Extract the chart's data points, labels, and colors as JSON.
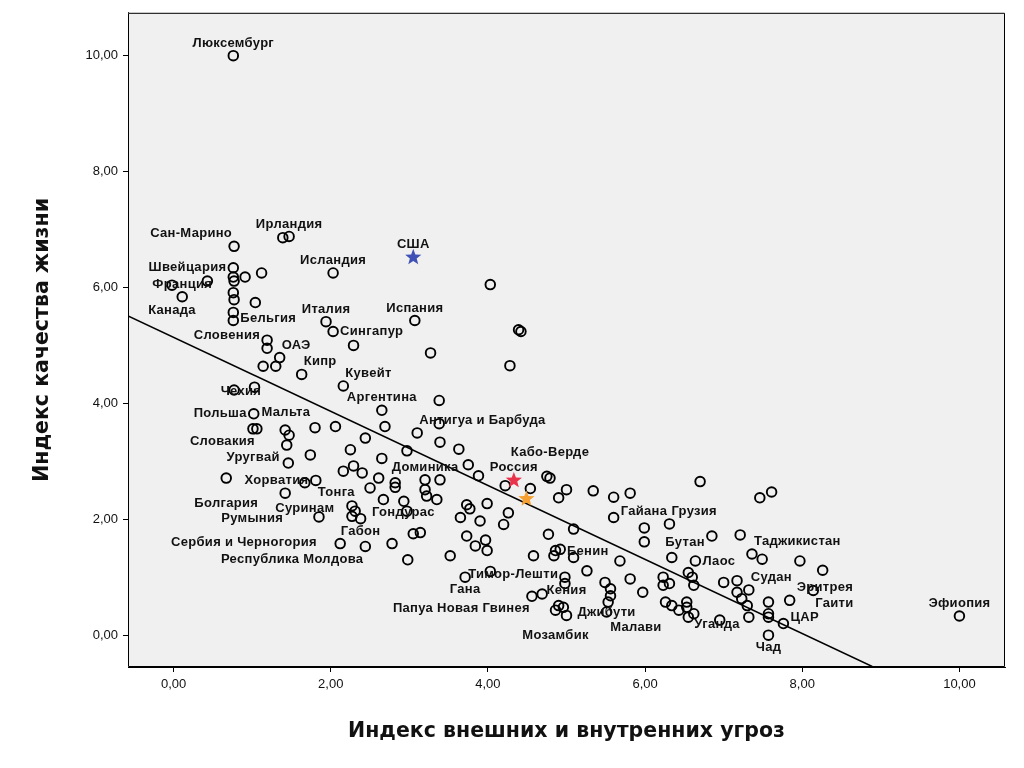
{
  "chart_data": {
    "type": "scatter",
    "xlabel": "Индекс внешних и внутренних угроз",
    "ylabel": "Индекс качества жизни",
    "xlim": [
      -0.58,
      10.58
    ],
    "ylim": [
      -0.55,
      10.74
    ],
    "xticks": [
      {
        "value": 0,
        "label": "0,00"
      },
      {
        "value": 2,
        "label": "2,00"
      },
      {
        "value": 4,
        "label": "4,00"
      },
      {
        "value": 6,
        "label": "6,00"
      },
      {
        "value": 8,
        "label": "8,00"
      },
      {
        "value": 10,
        "label": "10,00"
      }
    ],
    "yticks": [
      {
        "value": 0,
        "label": "0,00"
      },
      {
        "value": 2,
        "label": "2,00"
      },
      {
        "value": 4,
        "label": "4,00"
      },
      {
        "value": 6,
        "label": "6,00"
      },
      {
        "value": 8,
        "label": "8,00"
      },
      {
        "value": 10,
        "label": "10,00"
      }
    ],
    "series": [
      {
        "color": "#000000",
        "marker": "circle",
        "x": [
          0.76,
          1.39,
          1.47,
          0.77,
          4.03,
          0.76,
          0.76,
          0.77,
          0.91,
          1.12,
          2.03,
          0.43,
          -0.02,
          0.11,
          0.76,
          0.77,
          1.04,
          0.76,
          0.76,
          1.94,
          2.03,
          3.07,
          2.29,
          1.19,
          1.19,
          1.35,
          1.14,
          1.3,
          1.63,
          0.77,
          1.03,
          2.16,
          4.39,
          4.42,
          3.27,
          4.28,
          3.38,
          3.38,
          3.39,
          3.63,
          3.75,
          3.1,
          2.65,
          2.06,
          2.69,
          2.44,
          2.97,
          2.65,
          2.25,
          2.16,
          2.29,
          2.4,
          2.61,
          2.82,
          2.82,
          3.2,
          3.39,
          3.88,
          2.5,
          2.67,
          3.2,
          3.22,
          3.35,
          2.93,
          2.97,
          2.27,
          2.31,
          2.27,
          2.38,
          3.73,
          3.77,
          3.99,
          3.65,
          3.9,
          4.2,
          4.26,
          4.54,
          4.22,
          4.75,
          4.79,
          4.9,
          4.77,
          3.05,
          3.14,
          3.73,
          2.12,
          2.44,
          2.78,
          3.84,
          3.99,
          3.52,
          2.98,
          4.58,
          1.01,
          1.06,
          1.42,
          1.47,
          1.8,
          1.44,
          1.46,
          1.74,
          0.67,
          1.67,
          1.81,
          1.42,
          1.85,
          1.02,
          5.0,
          5.34,
          5.6,
          5.81,
          6.7,
          5.09,
          5.6,
          5.99,
          5.99,
          6.31,
          3.97,
          4.03,
          3.71,
          4.86,
          4.92,
          4.84,
          5.09,
          5.26,
          5.68,
          4.98,
          4.98,
          5.49,
          5.56,
          5.56,
          5.81,
          5.97,
          6.34,
          6.23,
          6.23,
          6.31,
          6.55,
          6.6,
          6.64,
          6.62,
          4.56,
          4.69,
          4.86,
          5.0,
          4.9,
          4.96,
          5.51,
          5.53,
          6.26,
          6.34,
          6.43,
          6.53,
          6.55,
          6.62,
          6.53,
          6.95,
          7.46,
          7.61,
          6.85,
          7.21,
          7.36,
          7.49,
          7.97,
          8.26,
          8.14,
          7.0,
          7.17,
          7.17,
          7.32,
          7.23,
          7.3,
          7.57,
          7.84,
          7.32,
          7.57,
          7.57,
          7.76,
          7.57,
          10.0
        ],
        "values": [
          10.0,
          6.86,
          6.88,
          6.71,
          6.05,
          6.34,
          6.18,
          6.11,
          6.18,
          6.25,
          6.25,
          6.11,
          6.04,
          5.84,
          5.91,
          5.79,
          5.74,
          5.57,
          5.43,
          5.41,
          5.24,
          5.43,
          5.0,
          5.09,
          4.95,
          4.79,
          4.64,
          4.64,
          4.5,
          4.23,
          4.28,
          4.3,
          5.27,
          5.24,
          4.87,
          4.65,
          4.05,
          3.65,
          3.33,
          3.21,
          2.94,
          3.49,
          3.88,
          3.6,
          3.6,
          3.4,
          3.18,
          3.05,
          3.2,
          2.83,
          2.92,
          2.8,
          2.71,
          2.63,
          2.55,
          2.68,
          2.68,
          2.75,
          2.54,
          2.34,
          2.51,
          2.4,
          2.34,
          2.31,
          2.14,
          2.23,
          2.14,
          2.05,
          2.01,
          2.25,
          2.18,
          2.27,
          2.03,
          1.97,
          1.91,
          2.11,
          2.53,
          2.58,
          2.74,
          2.71,
          2.37,
          1.74,
          1.75,
          1.77,
          1.71,
          1.58,
          1.53,
          1.58,
          1.54,
          1.46,
          1.37,
          1.3,
          1.37,
          3.56,
          3.56,
          3.54,
          3.45,
          3.58,
          3.28,
          2.97,
          3.11,
          2.71,
          2.63,
          2.67,
          2.45,
          2.04,
          3.82,
          2.51,
          2.49,
          2.38,
          2.45,
          2.65,
          1.83,
          2.03,
          1.85,
          1.61,
          1.92,
          1.64,
          1.1,
          1.0,
          1.46,
          1.48,
          1.37,
          1.34,
          1.11,
          1.28,
          1.0,
          0.89,
          0.91,
          0.8,
          0.68,
          0.97,
          0.74,
          1.34,
          1.0,
          0.86,
          0.89,
          1.08,
          1.0,
          1.28,
          0.86,
          0.67,
          0.71,
          0.43,
          0.34,
          0.51,
          0.48,
          0.4,
          0.57,
          0.57,
          0.51,
          0.43,
          0.48,
          0.31,
          0.37,
          0.57,
          0.26,
          2.37,
          2.47,
          1.71,
          1.73,
          1.4,
          1.31,
          1.28,
          1.12,
          0.77,
          0.91,
          0.94,
          0.74,
          0.78,
          0.63,
          0.51,
          0.57,
          0.6,
          0.31,
          0.37,
          0.31,
          0.2,
          0.0,
          0.33
        ]
      },
      {
        "type": "line",
        "color": "#000000",
        "marker": "none",
        "x": [
          -0.58,
          8.89
        ],
        "values": [
          5.51,
          -0.54
        ]
      },
      {
        "color": "#3f51b5",
        "marker": "star",
        "x": [
          3.05
        ],
        "values": [
          6.52
        ]
      },
      {
        "color": "#e8334a",
        "marker": "star",
        "x": [
          4.33
        ],
        "values": [
          2.67
        ]
      },
      {
        "color": "#f5a030",
        "marker": "star",
        "x": [
          4.49
        ],
        "values": [
          2.35
        ]
      }
    ],
    "annotations": [
      {
        "text": "Люксембург",
        "x": 0.76,
        "y": 10.0
      },
      {
        "text": "Ирландия",
        "x": 1.47,
        "y": 6.88
      },
      {
        "text": "Сан-Марино",
        "x": 0.77,
        "y": 6.71
      },
      {
        "text": "США",
        "x": 3.05,
        "y": 6.52
      },
      {
        "text": "Швейцария",
        "x": 0.76,
        "y": 6.34
      },
      {
        "text": "Канада",
        "x": -0.02,
        "y": 6.04
      },
      {
        "text": "Исландия",
        "x": 2.03,
        "y": 6.25
      },
      {
        "text": "Бельгия",
        "x": 0.76,
        "y": 5.91
      },
      {
        "text": "Испания",
        "x": 3.07,
        "y": 5.43
      },
      {
        "text": "Франция",
        "x": 0.11,
        "y": 5.84
      },
      {
        "text": "Италия",
        "x": 1.94,
        "y": 5.41
      },
      {
        "text": "Сингапур",
        "x": 2.03,
        "y": 5.24
      },
      {
        "text": "Словения",
        "x": 1.19,
        "y": 4.95
      },
      {
        "text": "ОАЭ",
        "x": 1.35,
        "y": 4.79
      },
      {
        "text": "Кипр",
        "x": 1.63,
        "y": 4.5
      },
      {
        "text": "Чехия",
        "x": 1.14,
        "y": 4.64
      },
      {
        "text": "Кувейт",
        "x": 2.16,
        "y": 4.3
      },
      {
        "text": "Мальта",
        "x": 1.03,
        "y": 4.28
      },
      {
        "text": "Польша",
        "x": 1.02,
        "y": 3.82
      },
      {
        "text": "Словакия",
        "x": 1.06,
        "y": 3.56
      },
      {
        "text": "Аргентина",
        "x": 2.65,
        "y": 3.88
      },
      {
        "text": "Антигуа и Барбуда",
        "x": 3.1,
        "y": 3.49
      },
      {
        "text": "Уругвай",
        "x": 1.44,
        "y": 3.28
      },
      {
        "text": "Хорватия",
        "x": 1.74,
        "y": 3.11
      },
      {
        "text": "Доминика",
        "x": 3.2,
        "y": 2.68
      },
      {
        "text": "Россия",
        "x": 4.33,
        "y": 2.67
      },
      {
        "text": "Тонга",
        "x": 1.81,
        "y": 2.67
      },
      {
        "text": "Болгария",
        "x": 0.67,
        "y": 2.71
      },
      {
        "text": "Кабо-Верде",
        "x": 4.79,
        "y": 2.71
      },
      {
        "text": "Суринам",
        "x": 1.67,
        "y": 2.63
      },
      {
        "text": "Румыния",
        "x": 1.42,
        "y": 2.45
      },
      {
        "text": "Гондурас",
        "x": 3.35,
        "y": 2.34
      },
      {
        "text": "Гайана",
        "x": 5.6,
        "y": 2.03
      },
      {
        "text": "Грузия",
        "x": 6.31,
        "y": 1.92
      },
      {
        "text": "Габон",
        "x": 2.38,
        "y": 2.01
      },
      {
        "text": "Сербия и Черногория",
        "x": 1.85,
        "y": 2.04
      },
      {
        "text": "Бутан",
        "x": 6.85,
        "y": 1.71
      },
      {
        "text": "Таджикистан",
        "x": 7.36,
        "y": 1.4
      },
      {
        "text": "Тимор-Лешти",
        "x": 4.92,
        "y": 1.48
      },
      {
        "text": "Республика Молдова",
        "x": 2.44,
        "y": 1.53
      },
      {
        "text": "Лаос",
        "x": 6.64,
        "y": 1.28
      },
      {
        "text": "Судан",
        "x": 7.32,
        "y": 0.78
      },
      {
        "text": "Гана",
        "x": 3.71,
        "y": 1.0
      },
      {
        "text": "Бенин",
        "x": 4.98,
        "y": 1.0
      },
      {
        "text": "Гаити",
        "x": 8.14,
        "y": 0.77
      },
      {
        "text": "Уганда",
        "x": 7.23,
        "y": 0.63
      },
      {
        "text": "Мозамбик",
        "x": 4.86,
        "y": 0.43
      },
      {
        "text": "Малави",
        "x": 5.53,
        "y": 0.57
      },
      {
        "text": "Папуа Новая Гвинея",
        "x": 4.56,
        "y": 0.67
      },
      {
        "text": "Эритрея",
        "x": 7.84,
        "y": 0.6
      },
      {
        "text": "Джибути",
        "x": 5.51,
        "y": 0.4
      },
      {
        "text": "Кения",
        "x": 5.0,
        "y": 0.34
      },
      {
        "text": "Эфиопия",
        "x": 10.0,
        "y": 0.33
      },
      {
        "text": "Чад",
        "x": 7.57,
        "y": 0.0
      },
      {
        "text": "ЦАР",
        "x": 7.76,
        "y": 0.2
      }
    ]
  }
}
